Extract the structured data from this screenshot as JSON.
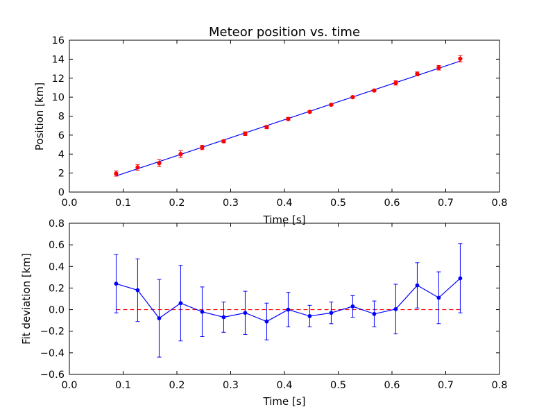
{
  "chart_data": [
    {
      "type": "scatter",
      "title": "Meteor position vs. time",
      "xlabel": "Time [s]",
      "ylabel": "Position [km]",
      "xlim": [
        0.0,
        0.8
      ],
      "ylim": [
        0,
        16
      ],
      "xticks": [
        "0.0",
        "0.1",
        "0.2",
        "0.3",
        "0.4",
        "0.5",
        "0.6",
        "0.7",
        "0.8"
      ],
      "yticks": [
        "0",
        "2",
        "4",
        "6",
        "8",
        "10",
        "12",
        "14",
        "16"
      ],
      "grid": false,
      "series": [
        {
          "style": "red markers with error bars",
          "color": "#ff0000",
          "x": [
            0.087,
            0.127,
            0.167,
            0.207,
            0.247,
            0.287,
            0.327,
            0.367,
            0.407,
            0.447,
            0.487,
            0.527,
            0.567,
            0.607,
            0.647,
            0.687,
            0.727
          ],
          "y": [
            1.95,
            2.6,
            3.05,
            4.0,
            4.7,
            5.35,
            6.15,
            6.85,
            7.7,
            8.45,
            9.2,
            10.0,
            10.7,
            11.5,
            12.45,
            13.1,
            14.05
          ],
          "yerr": [
            0.27,
            0.29,
            0.36,
            0.35,
            0.23,
            0.14,
            0.2,
            0.17,
            0.16,
            0.1,
            0.1,
            0.1,
            0.12,
            0.23,
            0.21,
            0.24,
            0.32
          ]
        },
        {
          "style": "fit line",
          "color": "#0000ff",
          "x": [
            0.087,
            0.727
          ],
          "y": [
            1.7,
            13.8
          ]
        }
      ]
    },
    {
      "type": "line",
      "xlabel": "Time [s]",
      "ylabel": "Fit deviation [km]",
      "xlim": [
        0.0,
        0.8
      ],
      "ylim": [
        -0.6,
        0.8
      ],
      "xticks": [
        "0.0",
        "0.1",
        "0.2",
        "0.3",
        "0.4",
        "0.5",
        "0.6",
        "0.7",
        "0.8"
      ],
      "yticks": [
        "−0.6",
        "−0.4",
        "−0.2",
        "0.0",
        "0.2",
        "0.4",
        "0.6",
        "0.8"
      ],
      "grid": false,
      "series": [
        {
          "style": "blue line with markers and error bars",
          "color": "#0000ff",
          "x": [
            0.087,
            0.127,
            0.167,
            0.207,
            0.247,
            0.287,
            0.327,
            0.367,
            0.407,
            0.447,
            0.487,
            0.527,
            0.567,
            0.607,
            0.647,
            0.687,
            0.727
          ],
          "y": [
            0.24,
            0.18,
            -0.08,
            0.06,
            -0.02,
            -0.07,
            -0.03,
            -0.11,
            0.0,
            -0.06,
            -0.03,
            0.03,
            -0.04,
            0.005,
            0.225,
            0.11,
            0.29
          ],
          "yerr": [
            0.27,
            0.29,
            0.36,
            0.35,
            0.23,
            0.14,
            0.2,
            0.17,
            0.16,
            0.1,
            0.1,
            0.1,
            0.12,
            0.23,
            0.21,
            0.24,
            0.32
          ]
        },
        {
          "style": "zero reference dashed line",
          "color": "#ff0000",
          "x": [
            0.087,
            0.727
          ],
          "y": [
            0.0,
            0.0
          ]
        }
      ]
    }
  ]
}
